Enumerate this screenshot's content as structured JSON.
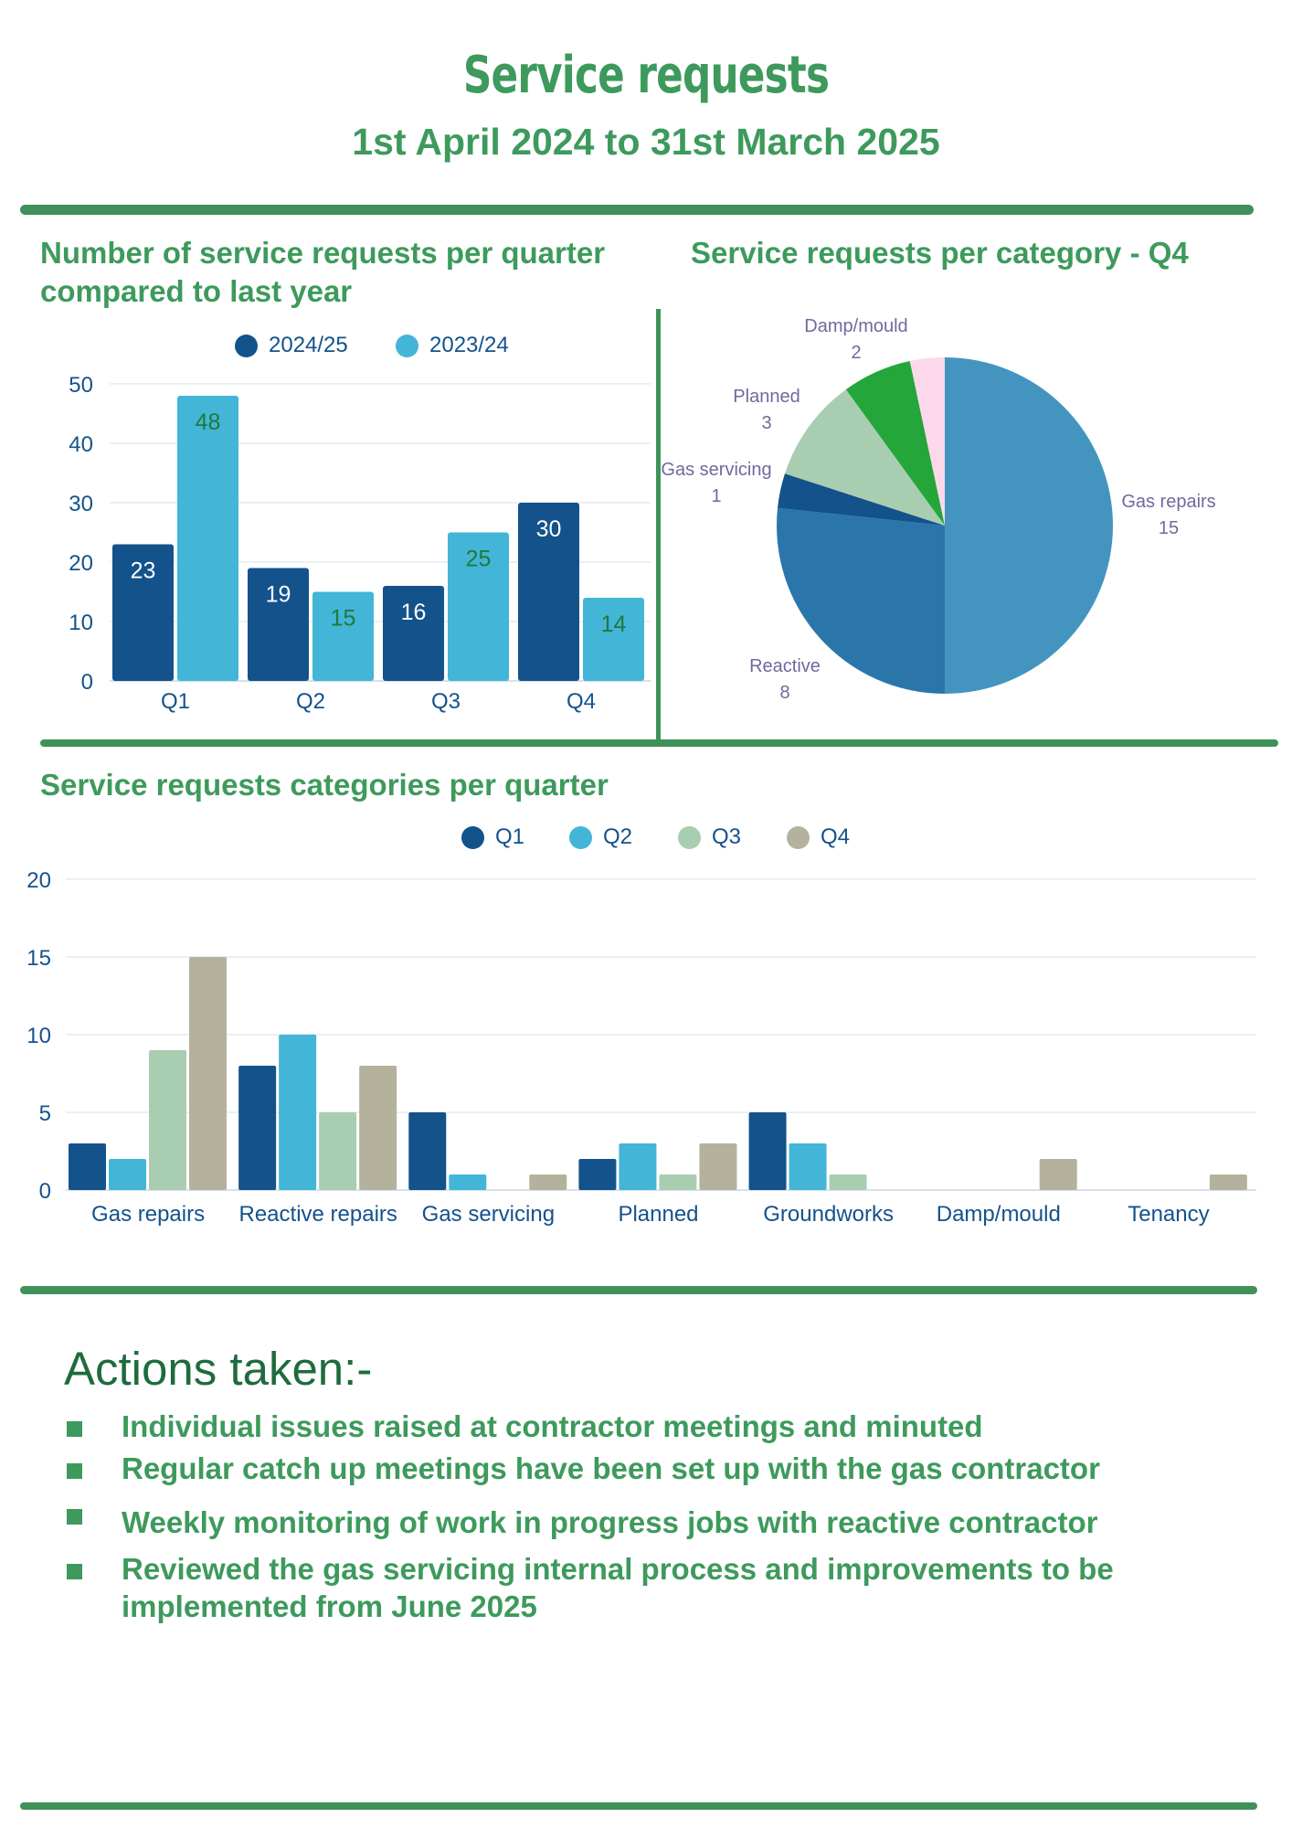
{
  "header": {
    "title": "Service requests",
    "subtitle": "1st April 2024 to 31st March 2025"
  },
  "colors": {
    "accent": "#3d9a5c",
    "dark_blue": "#14528c",
    "light_blue": "#43b5d7",
    "sage": "#a9cdb0",
    "khaki": "#b4b29c"
  },
  "sections": {
    "quarterly_heading_line1": "Number of service requests per quarter",
    "quarterly_heading_line2": "compared to last year",
    "category_q4_heading": "Service requests per category - Q4",
    "categories_heading": "Service requests categories per quarter"
  },
  "chart_data": [
    {
      "type": "bar",
      "categories": [
        "Q1",
        "Q2",
        "Q3",
        "Q4"
      ],
      "series": [
        {
          "name": "2024/25",
          "values": [
            23,
            19,
            16,
            30
          ],
          "color": "#14528c"
        },
        {
          "name": "2023/24",
          "values": [
            48,
            15,
            25,
            14
          ],
          "color": "#43b5d7"
        }
      ],
      "ylim": [
        0,
        50
      ],
      "yticks": [
        0,
        10,
        20,
        30,
        40,
        50
      ],
      "grid": true,
      "legend": "top",
      "data_labels": true
    },
    {
      "type": "pie",
      "slices": [
        {
          "label": "Gas repairs",
          "value": 15,
          "color": "#4395c0"
        },
        {
          "label": "Reactive",
          "value": 8,
          "color": "#2a76ab"
        },
        {
          "label": "Gas servicing",
          "value": 1,
          "color": "#14528c"
        },
        {
          "label": "Planned",
          "value": 3,
          "color": "#a9cdb0"
        },
        {
          "label": "Damp/mould",
          "value": 2,
          "color": "#24a63a"
        },
        {
          "label": "",
          "value": 1,
          "color": "#fbd9ea"
        }
      ]
    },
    {
      "type": "bar",
      "categories": [
        "Gas repairs",
        "Reactive repairs",
        "Gas servicing",
        "Planned",
        "Groundworks",
        "Damp/mould",
        "Tenancy"
      ],
      "series": [
        {
          "name": "Q1",
          "values": [
            3,
            8,
            5,
            2,
            5,
            0,
            0
          ],
          "color": "#14528c"
        },
        {
          "name": "Q2",
          "values": [
            2,
            10,
            1,
            3,
            3,
            0,
            0
          ],
          "color": "#43b5d7"
        },
        {
          "name": "Q3",
          "values": [
            9,
            5,
            0,
            1,
            1,
            0,
            0
          ],
          "color": "#a9cdb0"
        },
        {
          "name": "Q4",
          "values": [
            15,
            8,
            1,
            3,
            0,
            2,
            1
          ],
          "color": "#b4b29c"
        }
      ],
      "ylim": [
        0,
        20
      ],
      "yticks": [
        0,
        5,
        10,
        15,
        20
      ],
      "grid": true,
      "legend": "top"
    }
  ],
  "actions": {
    "heading": "Actions taken:-",
    "items": [
      "Individual issues raised at contractor meetings and minuted",
      "Regular catch up meetings have been set up with the gas contractor",
      "Weekly monitoring of work in progress jobs with reactive contractor",
      "Reviewed the gas servicing internal process and improvements to be implemented from June 2025"
    ]
  }
}
